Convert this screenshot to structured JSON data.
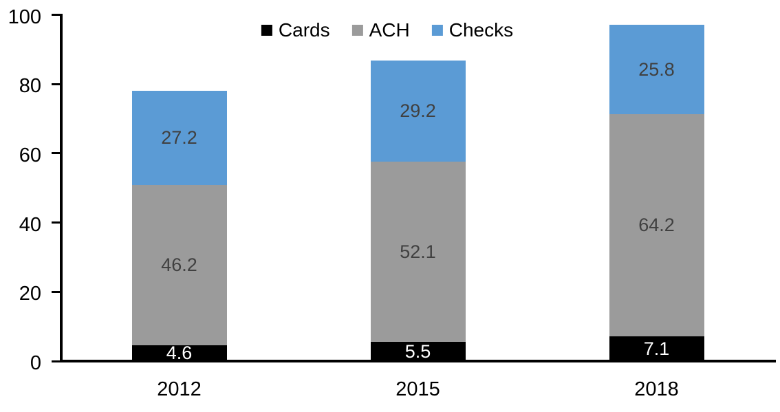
{
  "chart_data": {
    "type": "bar",
    "stacked": true,
    "title": "",
    "xlabel": "",
    "ylabel": "",
    "categories": [
      "2012",
      "2015",
      "2018"
    ],
    "series": [
      {
        "name": "Cards",
        "color": "#000000",
        "label_color": "#ffffff",
        "values": [
          4.6,
          5.5,
          7.1
        ]
      },
      {
        "name": "ACH",
        "color": "#9b9b9b",
        "label_color": "#404040",
        "values": [
          46.2,
          52.1,
          64.2
        ]
      },
      {
        "name": "Checks",
        "color": "#5b9bd5",
        "label_color": "#404040",
        "values": [
          27.2,
          29.2,
          25.8
        ]
      }
    ],
    "totals": [
      78.0,
      86.8,
      97.1
    ],
    "ylim": [
      0,
      100
    ],
    "yticks": [
      0,
      20,
      40,
      60,
      80,
      100
    ],
    "grid": false,
    "legend_position": "top-center",
    "data_labels": true,
    "axis_color": "#000000"
  }
}
